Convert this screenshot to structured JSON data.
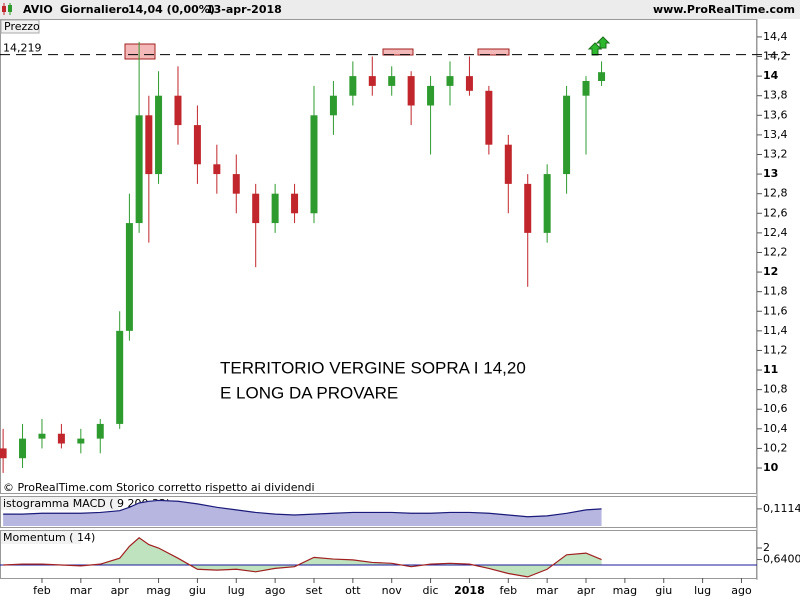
{
  "chart_data": [
    {
      "type": "candlestick",
      "title": "AVIO",
      "period": "Giornaliero",
      "last": "14,04 (0,00%)",
      "date": "13-apr-2018",
      "source": "www.ProRealTime.com",
      "panel_label": "Prezzo",
      "footer": "© ProRealTime.com Storico corretto rispetto ai dividendi",
      "annotation": [
        "TERRITORIO VERGINE SOPRA I 14,20",
        "E LONG DA PROVARE"
      ],
      "reference_line": {
        "value": 14.219,
        "label": "14,219"
      },
      "up_color": "#2e9b2e",
      "down_color": "#c0262b",
      "xlim": [
        -0.08,
        19.4
      ],
      "x": [
        0,
        0.5,
        1,
        1.5,
        2,
        2.5,
        3,
        3.25,
        3.5,
        3.75,
        4,
        4.5,
        5,
        5.5,
        6,
        6.5,
        7,
        7.5,
        8,
        8.5,
        9,
        9.5,
        10,
        10.5,
        11,
        11.5,
        12,
        12.5,
        13,
        13.5,
        14,
        14.5,
        15,
        15.4
      ],
      "open": [
        10.2,
        10.1,
        10.3,
        10.35,
        10.25,
        10.3,
        10.45,
        11.4,
        12.5,
        13.6,
        13.0,
        13.8,
        13.5,
        13.1,
        13.0,
        12.8,
        12.5,
        12.8,
        12.6,
        13.6,
        13.8,
        14.0,
        13.9,
        14.0,
        13.7,
        13.9,
        14.0,
        13.85,
        13.3,
        12.9,
        12.4,
        13.0,
        13.8,
        13.95
      ],
      "high": [
        10.4,
        10.45,
        10.5,
        10.45,
        10.4,
        10.5,
        11.6,
        12.8,
        14.35,
        13.8,
        14.05,
        14.1,
        13.7,
        13.3,
        13.2,
        12.9,
        12.9,
        12.9,
        13.9,
        13.95,
        14.15,
        14.2,
        14.1,
        14.05,
        14.0,
        14.15,
        14.2,
        13.9,
        13.4,
        13.0,
        13.1,
        13.9,
        14.0,
        14.15
      ],
      "low": [
        9.95,
        10.0,
        10.2,
        10.2,
        10.15,
        10.15,
        10.4,
        11.3,
        12.4,
        12.3,
        12.9,
        13.3,
        12.9,
        12.8,
        12.6,
        12.05,
        12.4,
        12.5,
        12.5,
        13.4,
        13.7,
        13.8,
        13.8,
        13.5,
        13.2,
        13.7,
        13.8,
        13.2,
        12.6,
        11.85,
        12.3,
        12.8,
        13.2,
        13.9
      ],
      "close": [
        10.1,
        10.3,
        10.35,
        10.25,
        10.3,
        10.45,
        11.4,
        12.5,
        13.6,
        13.0,
        13.8,
        13.5,
        13.1,
        13.0,
        12.8,
        12.5,
        12.8,
        12.6,
        13.6,
        13.8,
        14.0,
        13.9,
        14.0,
        13.7,
        13.9,
        14.0,
        13.85,
        13.3,
        12.9,
        12.4,
        13.0,
        13.8,
        13.95,
        14.04
      ],
      "ylim": [
        9.745,
        14.44
      ],
      "yticks": [
        10,
        {
          "value": 10.2,
          "label": "10,2"
        },
        {
          "value": 10.4,
          "label": "10,4"
        },
        {
          "value": 10.6,
          "label": "10,6"
        },
        {
          "value": 10.8,
          "label": "10,8"
        },
        11,
        {
          "value": 11.2,
          "label": "11,2"
        },
        {
          "value": 11.4,
          "label": "11,4"
        },
        {
          "value": 11.6,
          "label": "11,6"
        },
        {
          "value": 11.8,
          "label": "11,8"
        },
        12,
        {
          "value": 12.2,
          "label": "12,2"
        },
        {
          "value": 12.4,
          "label": "12,4"
        },
        {
          "value": 12.6,
          "label": "12,6"
        },
        {
          "value": 12.8,
          "label": "12,8"
        },
        13,
        {
          "value": 13.2,
          "label": "13,2"
        },
        {
          "value": 13.4,
          "label": "13,4"
        },
        {
          "value": 13.6,
          "label": "13,6"
        },
        {
          "value": 13.8,
          "label": "13,8"
        },
        14,
        {
          "value": 14.2,
          "label": "14,2"
        },
        {
          "value": 14.4,
          "label": "14,4"
        }
      ]
    },
    {
      "type": "area",
      "panel_label": "istogramma MACD ( 9 200 32)",
      "color": "#1a1a7a",
      "fill": "#b6b6e0",
      "values": [
        0.05,
        0.05,
        0.06,
        0.06,
        0.06,
        0.07,
        0.09,
        0.13,
        0.18,
        0.2,
        0.21,
        0.2,
        0.17,
        0.13,
        0.1,
        0.07,
        0.05,
        0.04,
        0.05,
        0.06,
        0.07,
        0.07,
        0.07,
        0.06,
        0.06,
        0.07,
        0.07,
        0.06,
        0.04,
        0.02,
        0.03,
        0.06,
        0.1,
        0.1114
      ],
      "ylim": [
        -0.1,
        0.25
      ],
      "yticks": [
        {
          "value": 0.1114,
          "label": "0,1114"
        }
      ]
    },
    {
      "type": "line",
      "panel_label": "Momentum ( 14)",
      "color": "#a02020",
      "fill": "#bfe3bf",
      "values": [
        0,
        0.1,
        0.1,
        0,
        -0.1,
        0.1,
        0.8,
        2.2,
        3.2,
        2.4,
        2.0,
        0.8,
        -0.5,
        -0.6,
        -0.5,
        -0.8,
        -0.4,
        -0.2,
        0.9,
        0.7,
        0.6,
        0.3,
        0.2,
        -0.2,
        0.1,
        0.2,
        0.1,
        -0.4,
        -1.0,
        -1.4,
        -0.5,
        1.2,
        1.4,
        0.64
      ],
      "ylim": [
        -1.53,
        4
      ],
      "yticks": [
        2,
        {
          "value": 0.64,
          "label": "0,6400"
        }
      ],
      "xticks": [
        {
          "value": 1,
          "label": "feb"
        },
        {
          "value": 2,
          "label": "mar"
        },
        {
          "value": 3,
          "label": "apr"
        },
        {
          "value": 4,
          "label": "mag"
        },
        {
          "value": 5,
          "label": "giu"
        },
        {
          "value": 6,
          "label": "lug"
        },
        {
          "value": 7,
          "label": "ago"
        },
        {
          "value": 8,
          "label": "set"
        },
        {
          "value": 9,
          "label": "ott"
        },
        {
          "value": 10,
          "label": "nov"
        },
        {
          "value": 11,
          "label": "dic"
        },
        {
          "value": 12,
          "label": "2018"
        },
        {
          "value": 13,
          "label": "feb"
        },
        {
          "value": 14,
          "label": "mar"
        },
        {
          "value": 15,
          "label": "apr"
        },
        {
          "value": 16,
          "label": "mag"
        },
        {
          "value": 17,
          "label": "giu"
        },
        {
          "value": 18,
          "label": "lug"
        },
        {
          "value": 19,
          "label": "ago"
        }
      ]
    }
  ]
}
